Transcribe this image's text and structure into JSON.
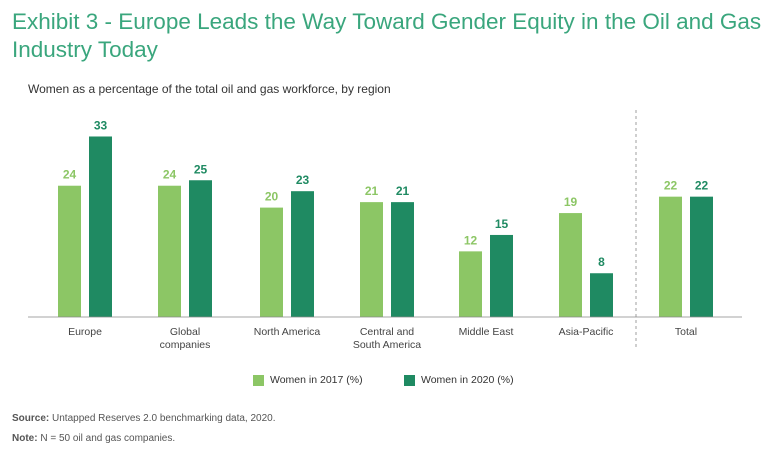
{
  "title": "Exhibit 3 - Europe Leads the Way Toward Gender Equity in the Oil and Gas Industry Today",
  "colors": {
    "series2017": "#8cc665",
    "series2020": "#1f8a62",
    "title": "#3aa67d",
    "axis": "#888888"
  },
  "chart_data": {
    "type": "bar",
    "title": "Women as a percentage of the total oil and gas workforce, by region",
    "xlabel": "",
    "ylabel": "",
    "ylim": [
      0,
      35
    ],
    "grid": false,
    "legend_position": "bottom",
    "categories": [
      [
        "Europe"
      ],
      [
        "Global",
        "companies"
      ],
      [
        "North America"
      ],
      [
        "Central and",
        "South America"
      ],
      [
        "Middle East"
      ],
      [
        "Asia-Pacific"
      ],
      [
        "Total"
      ]
    ],
    "series": [
      {
        "name": "Women in 2017 (%)",
        "values": [
          24,
          24,
          20,
          21,
          12,
          19,
          22
        ]
      },
      {
        "name": "Women in 2020 (%)",
        "values": [
          33,
          25,
          23,
          21,
          15,
          8,
          22
        ]
      }
    ]
  },
  "footer": {
    "source_label": "Source:",
    "source_text": "Untapped Reserves 2.0 benchmarking data, 2020.",
    "note_label": "Note:",
    "note_text": "N = 50 oil and gas companies."
  }
}
